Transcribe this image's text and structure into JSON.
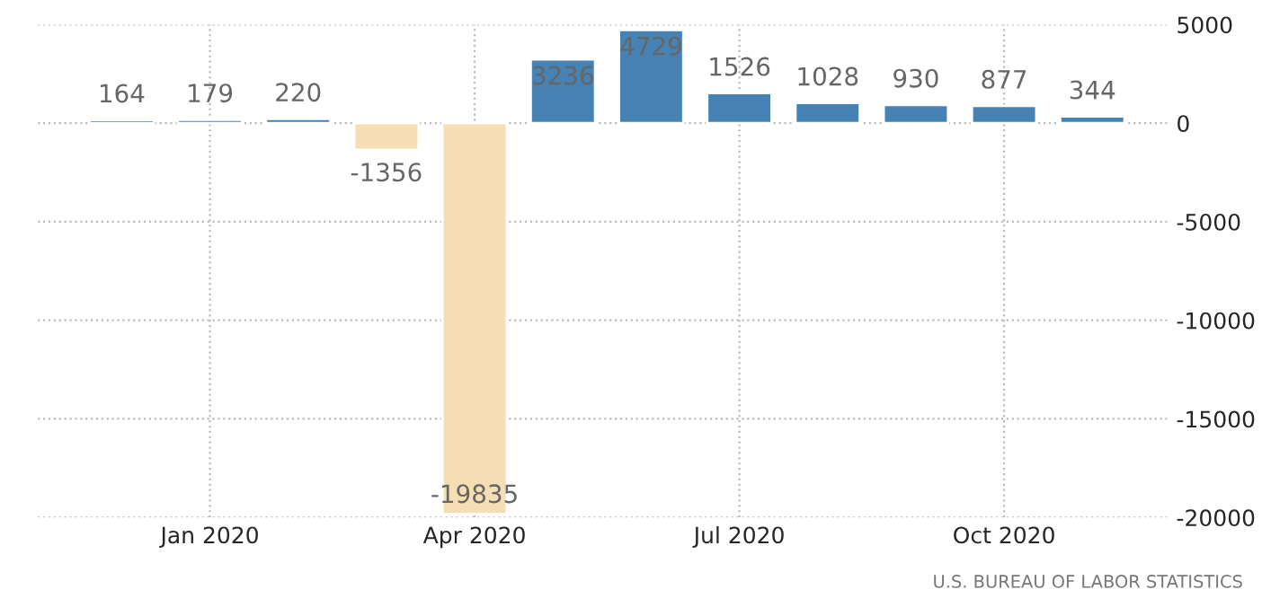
{
  "chart_data": {
    "type": "bar",
    "categories": [
      null,
      "Jan 2020",
      null,
      null,
      "Apr 2020",
      null,
      null,
      "Jul 2020",
      null,
      null,
      "Oct 2020",
      null
    ],
    "values": [
      164,
      179,
      220,
      -1356,
      -19835,
      3236,
      4729,
      1526,
      1028,
      930,
      877,
      344
    ],
    "colors": [
      "#4682b4",
      "#4682b4",
      "#4682b4",
      "#f5deb3",
      "#f5deb3",
      "#4682b4",
      "#4682b4",
      "#4682b4",
      "#4682b4",
      "#4682b4",
      "#4682b4",
      "#4682b4"
    ],
    "ylim": [
      -20000,
      5000
    ],
    "yticks": [
      -20000,
      -15000,
      -10000,
      -5000,
      0,
      5000
    ],
    "grid": true,
    "data_labels": true,
    "annotations": [
      "U.S. BUREAU OF LABOR STATISTICS"
    ]
  }
}
